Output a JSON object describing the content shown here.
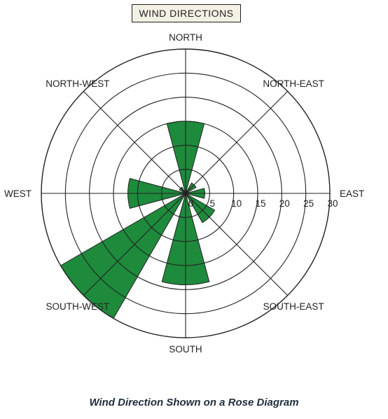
{
  "header": {
    "title": "WIND DIRECTIONS"
  },
  "caption": "Wind Direction Shown on a Rose Diagram",
  "chart_data": {
    "type": "rose",
    "title": "WIND DIRECTIONS",
    "directions": [
      "NORTH",
      "NORTH-EAST",
      "EAST",
      "SOUTH-EAST",
      "SOUTH",
      "SOUTH-WEST",
      "WEST",
      "NORTH-WEST"
    ],
    "values": [
      15,
      2.5,
      4,
      7,
      19,
      30,
      12,
      1.5
    ],
    "sector_width_deg": 30,
    "radial_ticks": [
      0,
      5,
      10,
      15,
      20,
      25,
      30
    ],
    "rmax": 30,
    "fill_color": "#1e8a3c",
    "line_color": "#222222",
    "grid": true
  }
}
